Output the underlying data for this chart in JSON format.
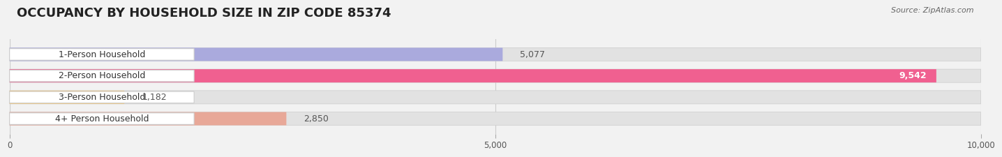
{
  "title": "OCCUPANCY BY HOUSEHOLD SIZE IN ZIP CODE 85374",
  "source": "Source: ZipAtlas.com",
  "categories": [
    "1-Person Household",
    "2-Person Household",
    "3-Person Household",
    "4+ Person Household"
  ],
  "values": [
    5077,
    9542,
    1182,
    2850
  ],
  "bar_colors": [
    "#aaaadd",
    "#f06090",
    "#f5c87a",
    "#e8a898"
  ],
  "xlim": [
    0,
    10000
  ],
  "xticks": [
    0,
    5000,
    10000
  ],
  "background_color": "#f2f2f2",
  "bar_bg_color": "#e2e2e2",
  "label_bg_color": "#ffffff",
  "title_fontsize": 13,
  "label_fontsize": 9,
  "value_fontsize": 9,
  "bar_height": 0.62
}
